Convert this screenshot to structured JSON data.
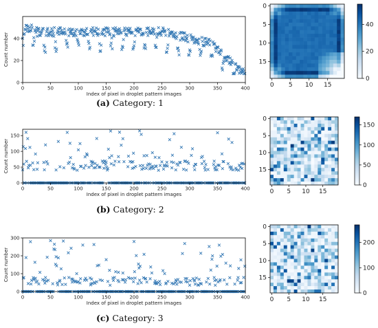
{
  "chart_data": [
    {
      "panel": "a",
      "type": "scatter",
      "marker": "x",
      "color": "#3478b4",
      "xlabel": "Index of pixel in droplet pattern images",
      "ylabel": "Count number",
      "xlim": [
        0,
        400
      ],
      "ylim": [
        0,
        60
      ],
      "xticks": [
        0,
        50,
        100,
        150,
        200,
        250,
        300,
        350,
        400
      ],
      "yticks": [
        0,
        20,
        40
      ],
      "grid": false,
      "series": [
        {
          "values_summary": "400 pixel counts, top edge ~45-55 decaying to ~10 near index 400"
        }
      ],
      "caption": {
        "label": "(a)",
        "text": " Category: 1"
      },
      "heatmap": {
        "type": "heatmap",
        "shape": [
          20,
          20
        ],
        "xticks": [
          0,
          5,
          10,
          15
        ],
        "yticks": [
          0,
          5,
          10,
          15
        ],
        "colorbar_ticks": [
          0,
          20,
          40
        ],
        "clim": [
          0,
          55
        ],
        "colormap": "Blues"
      }
    },
    {
      "panel": "b",
      "type": "scatter",
      "marker": "x",
      "color": "#3478b4",
      "xlabel": "Index of pixel in droplet pattern images",
      "ylabel": "Count number",
      "xlim": [
        0,
        400
      ],
      "ylim": [
        0,
        170
      ],
      "xticks": [
        0,
        50,
        100,
        150,
        200,
        250,
        300,
        350,
        400
      ],
      "yticks": [
        0,
        50,
        100,
        150
      ],
      "grid": false,
      "series": [
        {
          "values_summary": "many counts at 0, a band ~40-70, sparse peaks up to ~165"
        }
      ],
      "caption": {
        "label": "(b)",
        "text": " Category: 2"
      },
      "heatmap": {
        "type": "heatmap",
        "shape": [
          20,
          20
        ],
        "xticks": [
          0,
          5,
          10,
          15
        ],
        "yticks": [
          0,
          5,
          10,
          15
        ],
        "colorbar_ticks": [
          0,
          50,
          100,
          150
        ],
        "clim": [
          0,
          170
        ],
        "colormap": "Blues"
      }
    },
    {
      "panel": "c",
      "type": "scatter",
      "marker": "x",
      "color": "#3478b4",
      "xlabel": "Index of pixel in droplet pattern images",
      "ylabel": "Count number",
      "xlim": [
        0,
        400
      ],
      "ylim": [
        0,
        300
      ],
      "xticks": [
        0,
        50,
        100,
        150,
        200,
        250,
        300,
        350,
        400
      ],
      "yticks": [
        0,
        100,
        200,
        300
      ],
      "grid": false,
      "series": [
        {
          "values_summary": "many counts at 0, band ~40-80, peaks ~100-200, max ~285 near index 50"
        }
      ],
      "caption": {
        "label": "(c)",
        "text": " Category: 3"
      },
      "heatmap": {
        "type": "heatmap",
        "shape": [
          20,
          20
        ],
        "xticks": [
          0,
          5,
          10,
          15
        ],
        "yticks": [
          0,
          5,
          10,
          15
        ],
        "colorbar_ticks": [
          0,
          100,
          200
        ],
        "clim": [
          0,
          270
        ],
        "colormap": "Blues"
      }
    }
  ]
}
